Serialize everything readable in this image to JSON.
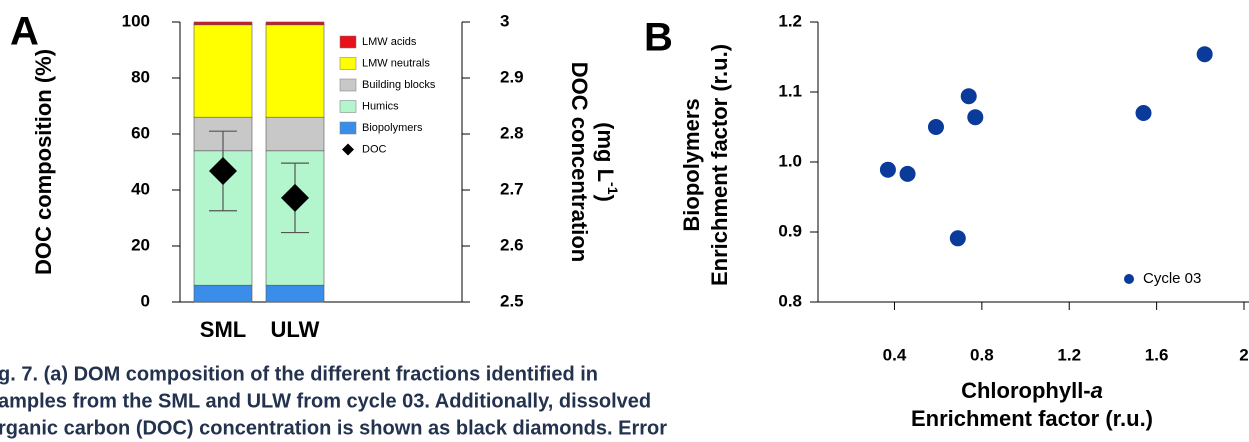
{
  "chart_data": [
    {
      "type": "stacked-bar",
      "panel": "A",
      "y_label": "DOC composition (%)",
      "y2_label": "DOC concentration",
      "y2_label_unit": "(mg L",
      "y2_label_sup": "-1",
      "y2_label_end": ")",
      "categories": [
        "SML",
        "ULW"
      ],
      "ylim": [
        0,
        100
      ],
      "yticks": [
        0,
        20,
        40,
        60,
        80,
        100
      ],
      "y2lim": [
        2.5,
        3
      ],
      "y2ticks": [
        2.5,
        2.6,
        2.7,
        2.8,
        2.9,
        3
      ],
      "series": [
        {
          "name": "Biopolymers",
          "color": "#3a8eea",
          "values": [
            6,
            6
          ]
        },
        {
          "name": "Humics",
          "color": "#b3f5cc",
          "values": [
            48,
            48
          ]
        },
        {
          "name": "Building blocks",
          "color": "#c8c8c8",
          "values": [
            12,
            12
          ]
        },
        {
          "name": "LMW neutrals",
          "color": "#ffff00",
          "values": [
            33,
            33
          ]
        },
        {
          "name": "LMW acids",
          "color": "#e8101a",
          "values": [
            1,
            1
          ]
        }
      ],
      "doc": {
        "name": "DOC",
        "color": "#000000",
        "axis": "y2",
        "values": [
          2.734,
          2.686
        ],
        "errors": [
          0.071,
          0.062
        ]
      },
      "legend": "upper right"
    },
    {
      "type": "scatter",
      "panel": "B",
      "y_label": [
        "Biopolymers",
        "Enrichment factor (r.u.)"
      ],
      "x_label": {
        "text": "Chlorophyll-",
        "italic": "a"
      },
      "x_label_2": "Enrichment factor (r.u.)",
      "xlim": [
        0.05,
        2.0
      ],
      "xticks": [
        0.4,
        0.8,
        1.2,
        1.6,
        2
      ],
      "ylim": [
        0.8,
        1.2
      ],
      "yticks": [
        0.8,
        0.9,
        {
          "value": 1,
          "label": "1.0"
        },
        1.1,
        1.2
      ],
      "series": [
        {
          "name": "Cycle 03",
          "color": "#0a3a9a",
          "x": [
            1.82,
            1.54,
            0.74,
            0.77,
            0.59,
            0.37,
            0.46,
            0.69
          ],
          "values": [
            1.154,
            1.07,
            1.094,
            1.064,
            1.05,
            0.989,
            0.983,
            0.891
          ]
        }
      ],
      "legend": "lower right"
    }
  ],
  "caption": [
    "g. 7. (a) DOM composition of the different fractions identified in",
    "amples from the SML and ULW from cycle 03. Additionally, dissolved",
    "rganic carbon (DOC) concentration is shown as black diamonds. Error"
  ]
}
